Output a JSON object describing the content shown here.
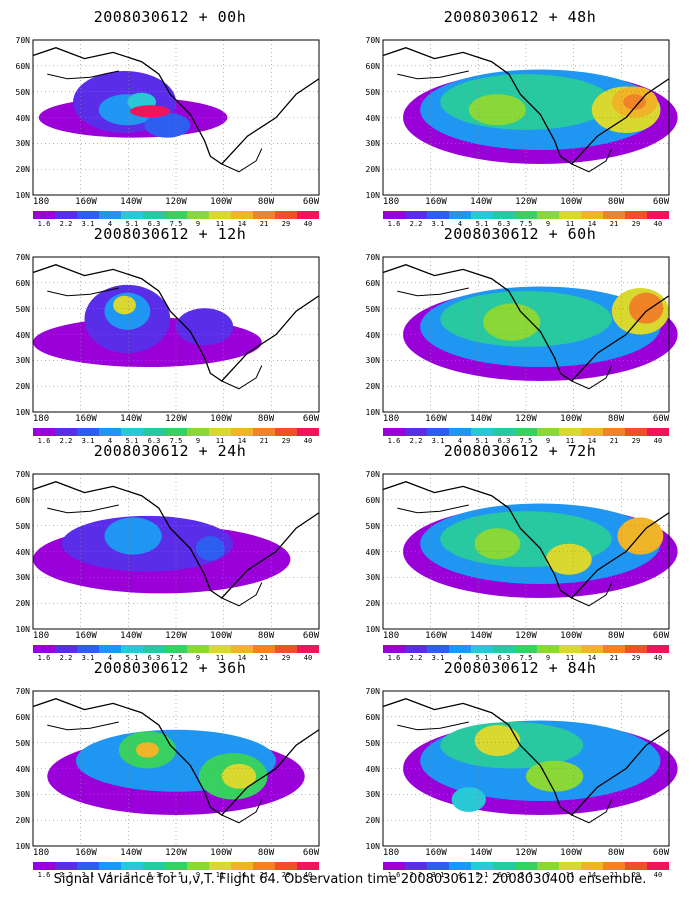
{
  "figure": {
    "caption": "Signal Variance for u,v,T. Flight 64. Observation time 2008030612. 2008030400 ensemble."
  },
  "axes": {
    "lat_labels": [
      "70N",
      "60N",
      "50N",
      "40N",
      "30N",
      "20N",
      "10N"
    ],
    "lon_labels": [
      "180",
      "160W",
      "140W",
      "120W",
      "100W",
      "80W",
      "60W"
    ]
  },
  "colorbar": {
    "colors": [
      "#9a00d8",
      "#5a2ee8",
      "#2e5ef0",
      "#1e96f2",
      "#28c8d6",
      "#28c8a0",
      "#38d060",
      "#8ad838",
      "#d8d830",
      "#f0b428",
      "#f08228",
      "#f05028",
      "#f0145a"
    ],
    "labels": [
      "1.6",
      "2.2",
      "3.1",
      "4",
      "5.1",
      "6.3",
      "7.5",
      "9",
      "11",
      "14",
      "21",
      "29",
      "40"
    ]
  },
  "panels": [
    {
      "title": "2008030612 + 00h"
    },
    {
      "title": "2008030612 + 48h"
    },
    {
      "title": "2008030612 + 12h"
    },
    {
      "title": "2008030612 + 60h"
    },
    {
      "title": "2008030612 + 24h"
    },
    {
      "title": "2008030612 + 72h"
    },
    {
      "title": "2008030612 + 36h"
    },
    {
      "title": "2008030612 + 84h"
    }
  ]
}
